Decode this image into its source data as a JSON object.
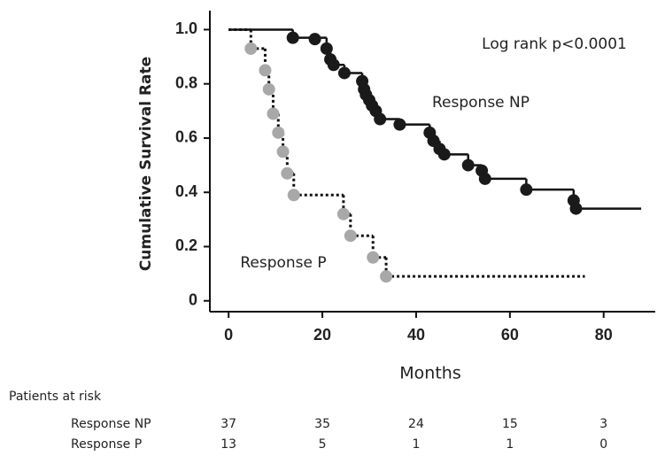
{
  "chart_data": {
    "type": "km",
    "xlabel": "Months",
    "ylabel": "Cumulative Survival Rate",
    "annotation": "Log rank p<0.0001",
    "xlim": [
      -4,
      91
    ],
    "ylim": [
      -0.04,
      1.07
    ],
    "xticks": [
      0,
      20,
      40,
      60,
      80
    ],
    "yticks": [
      0,
      0.2,
      0.4,
      0.6,
      0.8,
      {
        "value": 1,
        "label": "1.0"
      }
    ],
    "series": [
      {
        "name": "Response NP",
        "color": "#111111",
        "dash": false,
        "x": [
          0,
          13.7,
          20.9,
          21.7,
          22.4,
          24.7,
          28.5,
          28.9,
          29.3,
          30,
          30.6,
          31.4,
          32.3,
          36.5,
          42.9,
          43.7,
          45,
          46,
          51.1,
          54,
          54.7,
          63.5,
          73.6,
          74.1,
          88
        ],
        "values": [
          1,
          0.97,
          0.93,
          0.89,
          0.87,
          0.84,
          0.81,
          0.78,
          0.76,
          0.74,
          0.72,
          0.7,
          0.67,
          0.65,
          0.62,
          0.59,
          0.56,
          0.54,
          0.5,
          0.48,
          0.45,
          0.41,
          0.37,
          0.34,
          0.34
        ],
        "dots": {
          "x": [
            13.7,
            18.4,
            20.9,
            21.7,
            22.4,
            24.7,
            28.5,
            28.9,
            29.3,
            30,
            30.6,
            31.4,
            32.3,
            36.5,
            42.9,
            43.7,
            45,
            46,
            51.1,
            54,
            54.7,
            63.5,
            73.6,
            74.1
          ],
          "values": [
            0.97,
            0.965,
            0.93,
            0.89,
            0.87,
            0.84,
            0.81,
            0.78,
            0.76,
            0.74,
            0.72,
            0.7,
            0.67,
            0.65,
            0.62,
            0.59,
            0.56,
            0.54,
            0.5,
            0.48,
            0.45,
            0.41,
            0.37,
            0.34
          ]
        },
        "dot_color": "#1a1a1a"
      },
      {
        "name": "Response P",
        "color": "#111111",
        "dash": true,
        "x": [
          0,
          4.75,
          7.8,
          8.6,
          9.5,
          10.6,
          11.6,
          12.5,
          13.9,
          24.5,
          26,
          30.8,
          33.6,
          76
        ],
        "values": [
          1,
          0.93,
          0.85,
          0.78,
          0.69,
          0.62,
          0.55,
          0.47,
          0.39,
          0.32,
          0.24,
          0.16,
          0.09,
          0.09
        ],
        "dots": {
          "x": [
            4.75,
            7.8,
            8.6,
            9.5,
            10.6,
            11.6,
            12.5,
            13.9,
            24.5,
            26,
            30.8,
            33.6
          ],
          "values": [
            0.93,
            0.85,
            0.78,
            0.69,
            0.62,
            0.55,
            0.47,
            0.39,
            0.32,
            0.24,
            0.16,
            0.09
          ]
        },
        "dot_color": "#a8a8a8"
      }
    ],
    "risk_table": {
      "title": "Patients at risk",
      "rows": [
        {
          "name": "Response NP",
          "values": [
            37,
            35,
            24,
            15,
            3
          ]
        },
        {
          "name": "Response P",
          "values": [
            13,
            5,
            1,
            1,
            0
          ]
        }
      ]
    }
  }
}
